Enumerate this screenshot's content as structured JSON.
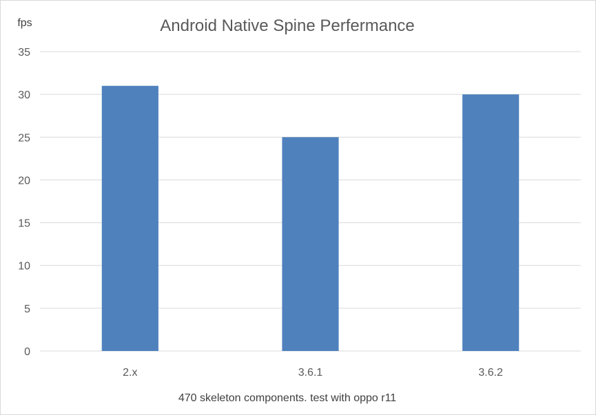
{
  "chart_data": {
    "type": "bar",
    "title": "Android Native Spine Perfermance",
    "ylabel": "fps",
    "xlabel": "470 skeleton components. test with oppo r11",
    "categories": [
      "2.x",
      "3.6.1",
      "3.6.2"
    ],
    "values": [
      31,
      25,
      30
    ],
    "ylim": [
      0,
      35
    ],
    "yticks": [
      0,
      5,
      10,
      15,
      20,
      25,
      30,
      35
    ],
    "grid": true,
    "legend": "none",
    "bar_color": "#4f81bd",
    "grid_color": "#d9d9d9"
  }
}
